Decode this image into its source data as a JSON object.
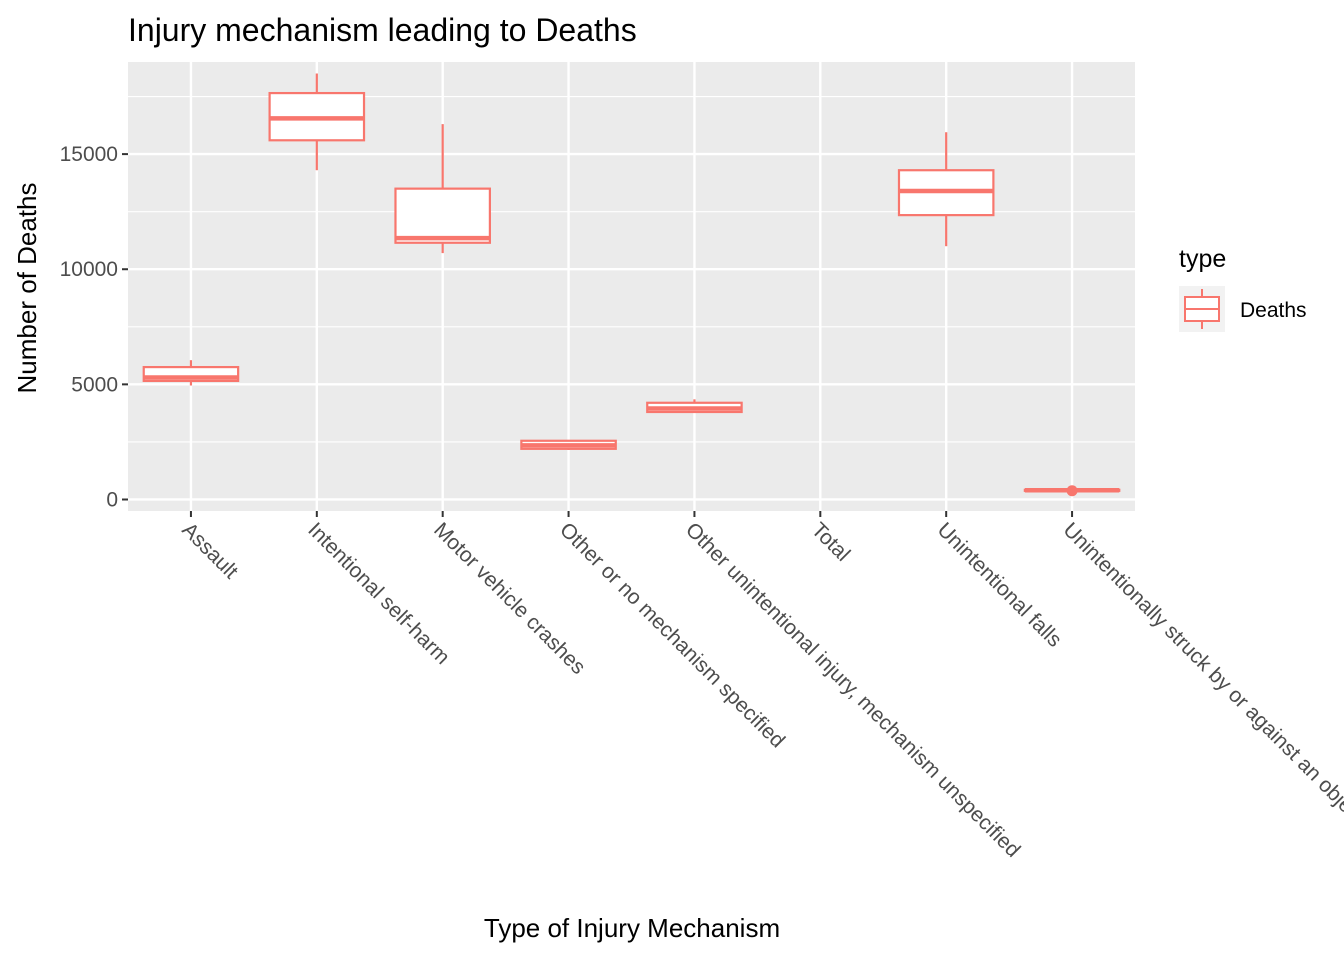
{
  "chart_data": {
    "type": "box",
    "title": "Injury mechanism leading to Deaths",
    "xlabel": "Type of Injury Mechanism",
    "ylabel": "Number of Deaths",
    "ylim": [
      -500,
      19000
    ],
    "yticks": [
      0,
      5000,
      10000,
      15000
    ],
    "grid": true,
    "legend": {
      "title": "type",
      "position": "right",
      "entries": [
        "Deaths"
      ]
    },
    "colors": {
      "series": "#F8766D",
      "panel": "#EBEBEB",
      "grid": "#FFFFFF",
      "tick_text": "#4D4D4D"
    },
    "categories": [
      "Assault",
      "Intentional self-harm",
      "Motor vehicle crashes",
      "Other or no mechanism specified",
      "Other unintentional injury, mechanism unspecified",
      "Total",
      "Unintentional falls",
      "Unintentionally struck by or against an object"
    ],
    "series": [
      {
        "name": "Deaths",
        "boxes": [
          {
            "min": 4950,
            "q1": 5150,
            "median": 5300,
            "q3": 5750,
            "max": 6050
          },
          {
            "min": 14300,
            "q1": 15600,
            "median": 16550,
            "q3": 17650,
            "max": 18500
          },
          {
            "min": 10700,
            "q1": 11150,
            "median": 11350,
            "q3": 13500,
            "max": 16300
          },
          {
            "min": 2150,
            "q1": 2200,
            "median": 2350,
            "q3": 2550,
            "max": 2550
          },
          {
            "min": 3800,
            "q1": 3800,
            "median": 3950,
            "q3": 4200,
            "max": 4350
          },
          null,
          {
            "min": 11000,
            "q1": 12350,
            "median": 13400,
            "q3": 14300,
            "max": 15950
          },
          {
            "min": 380,
            "q1": 380,
            "median": 400,
            "q3": 420,
            "max": 440,
            "outliers": [
              380
            ]
          }
        ]
      }
    ]
  }
}
